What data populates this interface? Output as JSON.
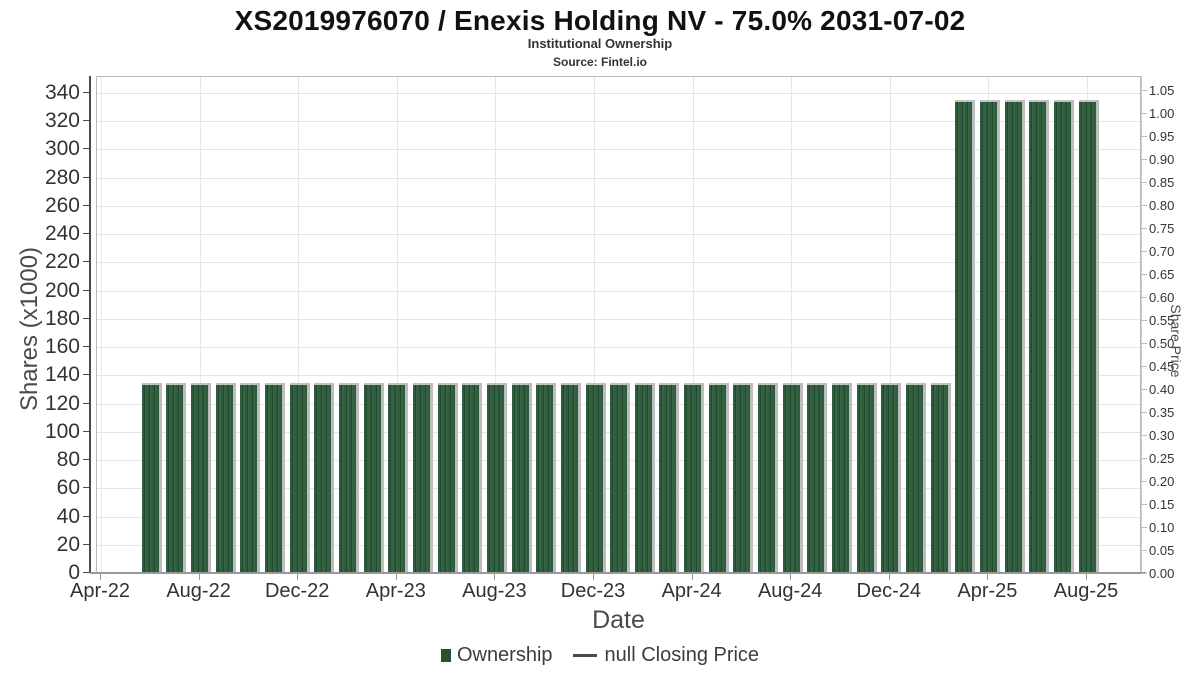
{
  "header": {
    "title": "XS2019976070 / Enexis Holding NV - 75.0% 2031-07-02",
    "subtitle": "Institutional Ownership",
    "source": "Source: Fintel.io"
  },
  "axes": {
    "x": {
      "title": "Date",
      "tick_labels": [
        "Apr-22",
        "Aug-22",
        "Dec-22",
        "Apr-23",
        "Aug-23",
        "Dec-23",
        "Apr-24",
        "Aug-24",
        "Dec-24",
        "Apr-25",
        "Aug-25"
      ],
      "tick_month_offsets": [
        0,
        4,
        8,
        12,
        16,
        20,
        24,
        28,
        32,
        36,
        40
      ]
    },
    "left": {
      "title": "Shares (x1000)",
      "tick_labels": [
        "0",
        "20",
        "40",
        "60",
        "80",
        "100",
        "120",
        "140",
        "160",
        "180",
        "200",
        "220",
        "240",
        "260",
        "280",
        "300",
        "320",
        "340"
      ],
      "tick_values": [
        0,
        20,
        40,
        60,
        80,
        100,
        120,
        140,
        160,
        180,
        200,
        220,
        240,
        260,
        280,
        300,
        320,
        340
      ]
    },
    "right": {
      "title": "Share Price",
      "tick_labels": [
        "0.00",
        "0.05",
        "0.10",
        "0.15",
        "0.20",
        "0.25",
        "0.30",
        "0.35",
        "0.40",
        "0.45",
        "0.50",
        "0.55",
        "0.60",
        "0.65",
        "0.70",
        "0.75",
        "0.80",
        "0.85",
        "0.90",
        "0.95",
        "1.00",
        "1.05"
      ],
      "tick_values": [
        0,
        0.05,
        0.1,
        0.15,
        0.2,
        0.25,
        0.3,
        0.35,
        0.4,
        0.45,
        0.5,
        0.55,
        0.6,
        0.65,
        0.7,
        0.75,
        0.8,
        0.85,
        0.9,
        0.95,
        1.0,
        1.05
      ]
    }
  },
  "legend": {
    "ownership": "Ownership",
    "closing_price": "null Closing Price"
  },
  "colors": {
    "bar_green": "#2e5c3d",
    "bar_green_dark": "#1f4a2d",
    "bar_shadow": "#bdbdbd",
    "legend_marker": "#26522f",
    "grid": "#e4e4e4",
    "axis_dark": "#4a4a4a",
    "axis_light": "#cccccc"
  },
  "chart_data": {
    "type": "bar",
    "title": "XS2019976070 / Enexis Holding NV - 75.0% 2031-07-02",
    "subtitle": "Institutional Ownership",
    "source": "Source: Fintel.io",
    "xlabel": "Date",
    "ylabel_left": "Shares (x1000)",
    "ylabel_right": "Share Price",
    "ylim_left": [
      0,
      352
    ],
    "ylim_right": [
      0,
      1.05
    ],
    "grid": true,
    "legend_position": "bottom",
    "x_tick_labels": [
      "Apr-22",
      "Aug-22",
      "Dec-22",
      "Apr-23",
      "Aug-23",
      "Dec-23",
      "Apr-24",
      "Aug-24",
      "Dec-24",
      "Apr-25",
      "Aug-25"
    ],
    "categories": [
      "Jun-22",
      "Jul-22",
      "Aug-22",
      "Sep-22",
      "Oct-22",
      "Nov-22",
      "Dec-22",
      "Jan-23",
      "Feb-23",
      "Mar-23",
      "Apr-23",
      "May-23",
      "Jun-23",
      "Jul-23",
      "Aug-23",
      "Sep-23",
      "Oct-23",
      "Nov-23",
      "Dec-23",
      "Jan-24",
      "Feb-24",
      "Mar-24",
      "Apr-24",
      "May-24",
      "Jun-24",
      "Jul-24",
      "Aug-24",
      "Sep-24",
      "Oct-24",
      "Nov-24",
      "Dec-24",
      "Jan-25",
      "Feb-25",
      "Mar-25",
      "Apr-25",
      "May-25",
      "Jun-25",
      "Jul-25",
      "Aug-25"
    ],
    "series": [
      {
        "name": "Ownership",
        "unit": "shares (x1000)",
        "values": [
          134,
          134,
          134,
          134,
          134,
          134,
          134,
          134,
          134,
          134,
          134,
          134,
          134,
          134,
          134,
          134,
          134,
          134,
          134,
          134,
          134,
          134,
          134,
          134,
          134,
          134,
          134,
          134,
          134,
          134,
          134,
          134,
          134,
          334,
          334,
          334,
          334,
          334,
          334
        ]
      },
      {
        "name": "null Closing Price",
        "unit": "share price",
        "values": []
      }
    ]
  }
}
